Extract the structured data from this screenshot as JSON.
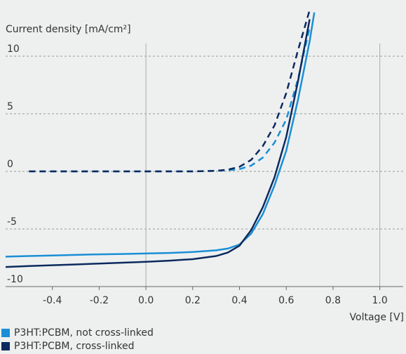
{
  "chart_data": {
    "type": "line",
    "y_label": "Current density [mA/cm²]",
    "x_label": "Voltage [V]",
    "x": [
      -0.6,
      -0.5,
      -0.4,
      -0.3,
      -0.2,
      -0.1,
      0,
      0.1,
      0.2,
      0.3,
      0.35,
      0.4,
      0.45,
      0.5,
      0.55,
      0.6,
      0.65,
      0.7,
      0.72
    ],
    "series": [
      {
        "name": "P3HT:PCBM, not cross-linked",
        "color": "#1a8fd6",
        "values": [
          -7.4,
          -7.35,
          -7.3,
          -7.25,
          -7.2,
          -7.17,
          -7.13,
          -7.08,
          -7.0,
          -6.85,
          -6.7,
          -6.35,
          -5.4,
          -3.7,
          -1.2,
          1.8,
          6.2,
          11.3,
          13.8
        ],
        "dark_values": [
          null,
          0,
          0,
          0,
          0,
          0,
          0,
          0,
          0,
          0.05,
          0.1,
          0.2,
          0.5,
          1.2,
          2.5,
          4.5,
          8.0,
          12.5,
          null
        ]
      },
      {
        "name": "P3HT:PCBM, cross-linked",
        "color": "#0d2a5e",
        "values": [
          -8.3,
          -8.22,
          -8.15,
          -8.08,
          -8.0,
          -7.93,
          -7.85,
          -7.75,
          -7.62,
          -7.35,
          -7.05,
          -6.45,
          -5.1,
          -3.1,
          -0.5,
          3.0,
          7.8,
          13.2,
          null
        ],
        "dark_values": [
          null,
          0,
          0,
          0,
          0,
          0,
          0,
          0,
          0,
          0.05,
          0.15,
          0.4,
          1.0,
          2.2,
          4.0,
          6.8,
          10.5,
          14.0,
          null
        ]
      }
    ],
    "xlim": [
      -0.6,
      1.1
    ],
    "ylim": [
      -10,
      14
    ],
    "xticks": [
      -0.4,
      -0.2,
      {
        "value": 0,
        "label": "0.0"
      },
      0.2,
      0.4,
      0.6,
      0.8,
      {
        "value": 1,
        "label": "1.0"
      }
    ],
    "yticks": [
      -10,
      -5,
      0,
      5,
      10
    ],
    "xgrid": [
      0,
      1
    ]
  }
}
